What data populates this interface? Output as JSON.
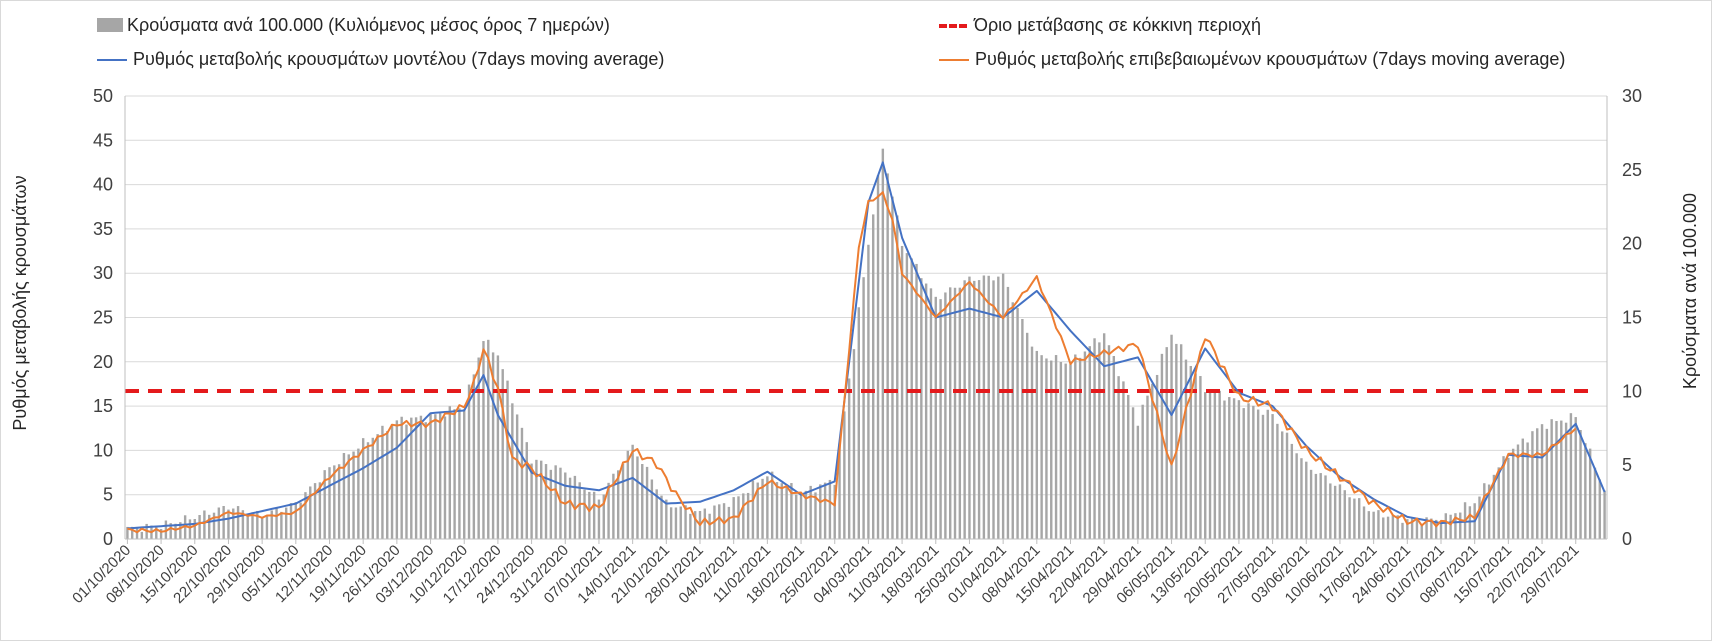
{
  "legend": {
    "bars": "Κρούσματα ανά 100.000 (Κυλιόμενος μέσος όρος 7 ημερών)",
    "threshold": "Όριο μετάβασης σε κόκκινη περιοχή",
    "model": "Ρυθμός μεταβολής κρουσμάτων μοντέλου (7days moving average)",
    "confirmed": "Ρυθμός μεταβολής επιβεβαιωμένων κρουσμάτων (7days moving average)"
  },
  "colors": {
    "bars": "#a6a6a6",
    "threshold": "#e41a1c",
    "model": "#4472c4",
    "confirmed": "#ed7d31",
    "grid": "#d9d9d9",
    "text": "#404040"
  },
  "chart_data": {
    "type": "bar+line",
    "xlabel": "",
    "ylabel_left": "Ρυθμός μεταβολής κρουσμάτων",
    "ylabel_right": "Κρούσματα ανά 100.000",
    "ylim_left": [
      0,
      50
    ],
    "ylim_right": [
      0,
      30
    ],
    "yticks_left": [
      "0",
      "5",
      "10",
      "15",
      "20",
      "25",
      "30",
      "35",
      "40",
      "45",
      "50"
    ],
    "yticks_right": [
      "0",
      "5",
      "10",
      "15",
      "20",
      "25",
      "30"
    ],
    "days": 308,
    "x_tick_labels": [
      "01/10/2020",
      "08/10/2020",
      "15/10/2020",
      "22/10/2020",
      "29/10/2020",
      "05/11/2020",
      "12/11/2020",
      "19/11/2020",
      "26/11/2020",
      "03/12/2020",
      "10/12/2020",
      "17/12/2020",
      "24/12/2020",
      "31/12/2020",
      "07/01/2021",
      "14/01/2021",
      "21/01/2021",
      "28/01/2021",
      "04/02/2021",
      "11/02/2021",
      "18/02/2021",
      "25/02/2021",
      "04/03/2021",
      "11/03/2021",
      "18/03/2021",
      "25/03/2021",
      "01/04/2021",
      "08/04/2021",
      "15/04/2021",
      "22/04/2021",
      "29/04/2021",
      "06/05/2021",
      "13/05/2021",
      "20/05/2021",
      "27/05/2021",
      "03/06/2021",
      "10/06/2021",
      "17/06/2021",
      "24/06/2021",
      "01/07/2021",
      "08/07/2021",
      "15/07/2021",
      "22/07/2021",
      "29/07/2021"
    ],
    "threshold_value": 16.7,
    "series": [
      {
        "name": "Κρούσματα ανά 100.000 (Κυλιόμενος μέσος όρος 7 ημερών)",
        "axis": "right",
        "type": "bar",
        "keypoints_day": [
          0,
          7,
          14,
          21,
          28,
          35,
          42,
          49,
          56,
          63,
          70,
          74,
          77,
          84,
          91,
          98,
          105,
          112,
          119,
          126,
          133,
          140,
          147,
          154,
          157,
          161,
          168,
          175,
          182,
          189,
          196,
          203,
          210,
          217,
          224,
          231,
          238,
          245,
          252,
          259,
          266,
          273,
          280,
          287,
          294,
          301,
          307
        ],
        "keypoints_value": [
          0.7,
          0.9,
          1.5,
          2.2,
          1.6,
          2.4,
          4.8,
          6.5,
          8.0,
          8.3,
          9.0,
          13.5,
          12.5,
          5.4,
          4.6,
          2.7,
          6.3,
          2.4,
          1.8,
          2.6,
          4.4,
          3.1,
          4.0,
          20.0,
          26.5,
          20.0,
          16.3,
          17.6,
          17.8,
          12.5,
          11.9,
          13.9,
          8.0,
          13.9,
          10.2,
          9.3,
          8.4,
          5.0,
          3.5,
          1.8,
          1.3,
          1.3,
          2.5,
          5.8,
          7.7,
          8.3,
          3.3
        ]
      },
      {
        "name": "Ρυθμός μεταβολής κρουσμάτων μοντέλου (7days moving average)",
        "axis": "left",
        "type": "line",
        "keypoints_day": [
          0,
          14,
          21,
          35,
          49,
          56,
          63,
          70,
          74,
          77,
          84,
          91,
          98,
          105,
          112,
          119,
          126,
          133,
          140,
          147,
          154,
          157,
          161,
          168,
          175,
          182,
          189,
          196,
          203,
          210,
          217,
          224,
          231,
          238,
          245,
          252,
          259,
          266,
          273,
          280,
          287,
          294,
          301,
          307
        ],
        "keypoints_value": [
          1.2,
          1.7,
          2.3,
          4.0,
          8.0,
          10.3,
          14.2,
          14.5,
          18.5,
          14.0,
          7.5,
          6.0,
          5.5,
          6.9,
          4.0,
          4.2,
          5.5,
          7.6,
          5.0,
          6.5,
          38.0,
          42.5,
          34.0,
          25.0,
          26.0,
          25.0,
          28.0,
          23.5,
          19.5,
          20.5,
          14.0,
          21.5,
          16.5,
          15.0,
          10.5,
          7.0,
          4.5,
          2.5,
          1.8,
          2.0,
          9.5,
          9.2,
          13.0,
          5.3
        ]
      },
      {
        "name": "Ρυθμός μεταβολής επιβεβαιωμένων κρουσμάτων (7days moving average)",
        "axis": "left",
        "type": "line",
        "keypoints_day": [
          0,
          7,
          14,
          21,
          28,
          35,
          42,
          49,
          56,
          63,
          70,
          72,
          74,
          77,
          80,
          84,
          91,
          98,
          105,
          110,
          114,
          119,
          126,
          133,
          140,
          147,
          152,
          154,
          157,
          159,
          161,
          168,
          175,
          182,
          189,
          196,
          203,
          210,
          217,
          224,
          231,
          238,
          245,
          252,
          259,
          266,
          273,
          280,
          287,
          294,
          301
        ],
        "keypoints_value": [
          1.0,
          0.9,
          1.5,
          3.0,
          2.5,
          3.0,
          7.0,
          10.0,
          13.0,
          13.0,
          15.0,
          17.5,
          21.5,
          17.0,
          9.0,
          8.0,
          4.0,
          3.5,
          10.0,
          8.5,
          5.0,
          1.8,
          2.3,
          6.5,
          5.0,
          4.0,
          33.0,
          38.0,
          39.0,
          36.0,
          30.0,
          25.0,
          29.0,
          25.0,
          29.5,
          20.0,
          21.0,
          22.0,
          8.0,
          23.0,
          16.0,
          15.0,
          10.0,
          7.0,
          4.0,
          2.0,
          1.8,
          2.5,
          9.5,
          9.5,
          12.5
        ]
      }
    ]
  }
}
